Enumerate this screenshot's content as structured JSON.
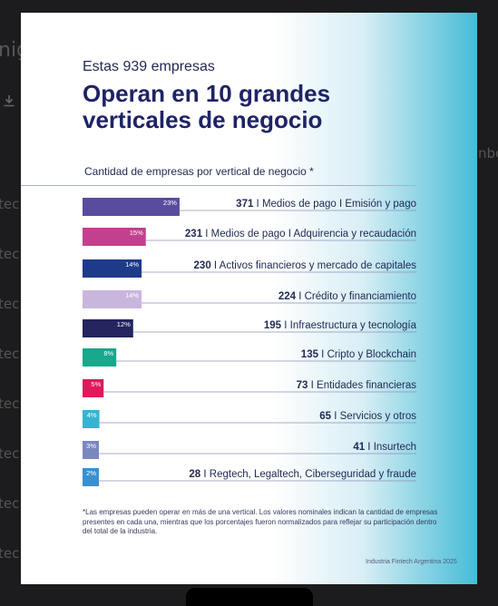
{
  "background_fragments": [
    "nig",
    "tec",
    "tec",
    "tec",
    "tec",
    "tec",
    "tec",
    "tec",
    "tec",
    "nbo"
  ],
  "header": {
    "subtitle": "Estas 939 empresas",
    "title_line1": "Operan en 10 grandes",
    "title_line2": "verticales de negocio"
  },
  "chart_data": {
    "type": "bar",
    "orientation": "horizontal",
    "title": "Cantidad de empresas por vertical de negocio *",
    "categories": [
      "Medios de pago I Emisión y pago",
      "Medios de pago I Adquirencia y recaudación",
      "Activos financieros y mercado de capitales",
      "Crédito y financiamiento",
      "Infraestructura y tecnología",
      "Cripto y Blockchain",
      "Entidades financieras",
      "Servicios y otros",
      "Insurtech",
      "Regtech, Legaltech, Ciberseguridad y fraude"
    ],
    "series": [
      {
        "values": [
          371,
          231,
          230,
          224,
          195,
          135,
          73,
          65,
          41,
          28
        ]
      },
      {
        "values": [
          23,
          15,
          14,
          14,
          12,
          8,
          5,
          4,
          3,
          2
        ]
      }
    ],
    "percent_labels": [
      "23%",
      "15%",
      "14%",
      "14%",
      "12%",
      "8%",
      "5%",
      "4%",
      "3%",
      "2%"
    ],
    "value_labels": [
      "371",
      "231",
      "230",
      "224",
      "195",
      "135",
      "73",
      "65",
      "41",
      "28"
    ],
    "bar_colors": [
      "#5b4b9e",
      "#c2418e",
      "#1e3a8a",
      "#c9b6dc",
      "#24245e",
      "#18a88c",
      "#e0195b",
      "#35b4d2",
      "#7a88c2",
      "#3c8fcf"
    ],
    "grid": false
  },
  "footnote": "*Las empresas pueden operar en más de una vertical. Los valores nominales indican la cantidad de empresas presentes en cada una, mientras que los porcentajes fueron normalizados para reflejar su participación dentro del total de la industria.",
  "credit": "Industria Fintech Argentina 2025"
}
